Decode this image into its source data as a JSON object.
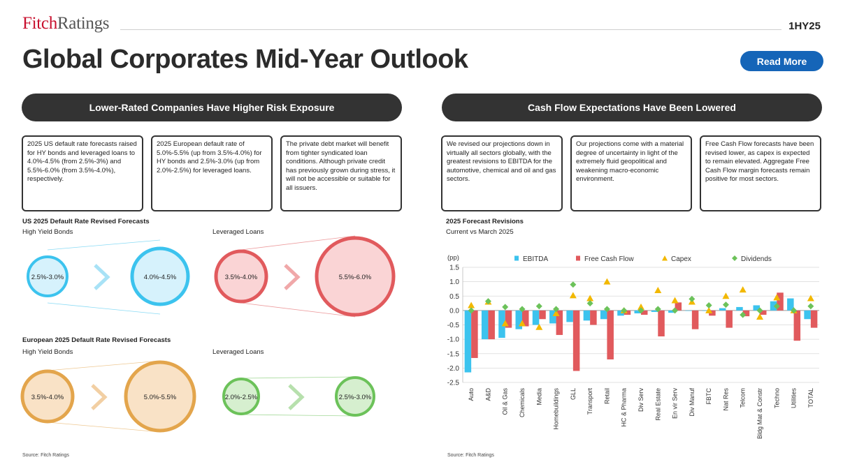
{
  "brand": {
    "part1": "Fitch",
    "part2": "Ratings"
  },
  "header": {
    "period": "1HY25",
    "title": "Global Corporates Mid-Year Outlook",
    "read_more": "Read More"
  },
  "sections": {
    "left_title": "Lower-Rated Companies Have Higher Risk Exposure",
    "right_title": "Cash Flow Expectations Have Been Lowered"
  },
  "boxes": [
    "2025 US default rate forecasts raised for HY bonds and leveraged loans to 4.0%-4.5% (from 2.5%-3%) and 5.5%-6.0% (from 3.5%-4.0%), respectively.",
    "2025 European default rate of 5.0%-5.5% (up from 3.5%-4.0%) for HY bonds and 2.5%-3.0% (up from 2.0%-2.5%) for leveraged loans.",
    "The private debt market will benefit from tighter syndicated loan conditions. Although private credit has previously grown during stress, it will not be accessible or suitable for all issuers.",
    "We revised our projections down in virtually all sectors globally, with the greatest revisions to EBITDA for the automotive, chemical and oil and gas sectors.",
    "Our projections come with a material degree of uncertainty in light of the extremely fluid geopolitical and weakening macro-economic environment.",
    "Free Cash Flow forecasts have been revised lower, as capex is expected to remain elevated.  Aggregate Free Cash Flow margin forecasts remain positive for most sectors."
  ],
  "us_forecasts": {
    "title": "US 2025 Default Rate Revised Forecasts",
    "hy_label": "High Yield Bonds",
    "ll_label": "Leveraged Loans",
    "hy_from": "2.5%-3.0%",
    "hy_to": "4.0%-4.5%",
    "ll_from": "3.5%-4.0%",
    "ll_to": "5.5%-6.0%"
  },
  "eu_forecasts": {
    "title": "European 2025 Default Rate Revised Forecasts",
    "hy_label": "High Yield Bonds",
    "ll_label": "Leveraged Loans",
    "hy_from": "3.5%-4.0%",
    "hy_to": "5.0%-5.5%",
    "ll_from": "2.0%-2.5%",
    "ll_to": "2.5%-3.0%"
  },
  "colors": {
    "us_hy": "#3cc3ee",
    "us_ll": "#e15a5d",
    "eu_hy": "#e3a54c",
    "eu_ll": "#6cc25a"
  },
  "sources": {
    "left": "Source: Fitch Ratings",
    "right": "Source: Fitch Ratings"
  },
  "chart_data": {
    "type": "bar",
    "title": "2025 Forecast Revisions",
    "subtitle": "Current vs March 2025",
    "ylabel": "(pp)",
    "ylim": [
      -2.5,
      1.5
    ],
    "yticks": [
      1.5,
      1.0,
      0.5,
      0.0,
      -0.5,
      -1.0,
      -1.5,
      -2.0,
      -2.5
    ],
    "ytick_labels": [
      "1.5",
      "1.0",
      "0.5",
      "0.0",
      "-0.5",
      "-1.0",
      "-1.5",
      "-2.0",
      "-2.5"
    ],
    "categories": [
      "Auto",
      "A&D",
      "Oil & Gas",
      "Chemicals",
      "Media",
      "Homebuildings",
      "GLL",
      "Transport",
      "Retail",
      "HC & Pharma",
      "Div Serv",
      "Real Estate",
      "En vir Serv",
      "Div Manuf",
      "FBTC",
      "Nat Res",
      "Telcom",
      "Bldg Mat & Constr",
      "Techno",
      "Utilities",
      "TOTAL"
    ],
    "series": [
      {
        "name": "EBITDA",
        "kind": "bar",
        "color": "#3cc3ee",
        "values": [
          -2.15,
          -1.0,
          -0.95,
          -0.65,
          -0.5,
          -0.45,
          -0.4,
          -0.35,
          -0.3,
          -0.18,
          -0.1,
          -0.05,
          -0.08,
          0.0,
          0.0,
          0.08,
          0.12,
          0.18,
          0.32,
          0.42,
          -0.3
        ]
      },
      {
        "name": "Free Cash Flow",
        "kind": "bar",
        "color": "#e15a5d",
        "values": [
          -1.65,
          -1.0,
          -0.6,
          -0.55,
          -0.3,
          -0.85,
          -2.1,
          -0.5,
          -1.7,
          -0.15,
          -0.15,
          -0.9,
          0.28,
          -0.65,
          -0.18,
          -0.6,
          -0.2,
          -0.15,
          0.62,
          -1.05,
          -0.6
        ]
      },
      {
        "name": "Capex",
        "kind": "marker",
        "shape": "triangle",
        "color": "#f2b800",
        "values": [
          0.18,
          0.3,
          -0.45,
          -0.45,
          -0.58,
          -0.1,
          0.52,
          0.42,
          1.0,
          0.0,
          0.12,
          0.7,
          0.35,
          0.3,
          0.0,
          0.5,
          0.72,
          -0.22,
          0.45,
          0.0,
          0.42
        ]
      },
      {
        "name": "Dividends",
        "kind": "marker",
        "shape": "diamond",
        "color": "#6cc25a",
        "values": [
          0.0,
          0.32,
          0.12,
          0.05,
          0.15,
          0.05,
          0.9,
          0.25,
          0.05,
          0.0,
          0.0,
          0.05,
          0.0,
          0.4,
          0.18,
          0.2,
          -0.15,
          0.0,
          0.15,
          0.0,
          0.15
        ]
      }
    ],
    "legend_position": "top"
  }
}
